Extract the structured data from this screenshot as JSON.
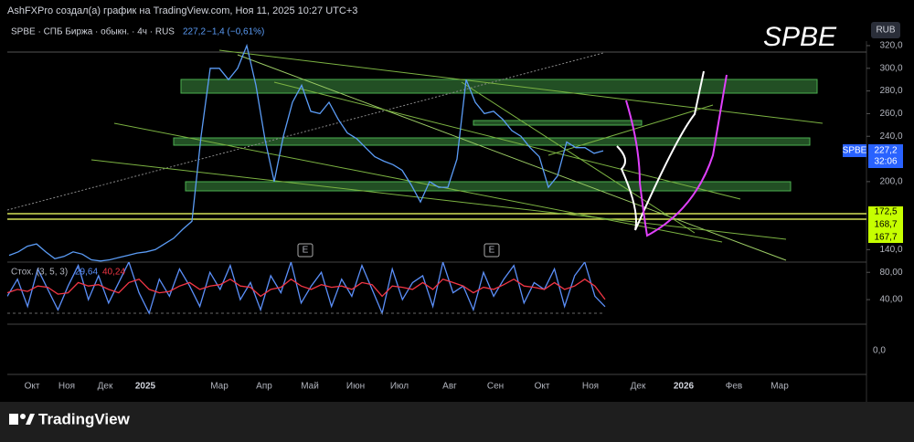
{
  "header": {
    "author_line": "AshFXPro создал(а) график на TradingView.com, Ноя 11, 2025 10:27 UTC+3",
    "symbol_line": "SPBE · СПБ Биржа · обыкн. · 4ч · RUS",
    "last": "227,2",
    "change": "−1,4 (−0,61%)",
    "big_symbol": "SPBE",
    "currency": "RUB",
    "brand": "TradingView"
  },
  "price_labels": {
    "symbol": "SPBE",
    "price": "227,2",
    "countdown": "32:06",
    "levels": [
      "172,5",
      "168,7",
      "167,7"
    ]
  },
  "events": [
    "E",
    "E"
  ],
  "time_axis": [
    "Окт",
    "Ноя",
    "Дек",
    "2025",
    "Мар",
    "Апр",
    "Май",
    "Июн",
    "Июл",
    "Авг",
    "Сен",
    "Окт",
    "Ноя",
    "Дек",
    "2026",
    "Фев",
    "Мар"
  ],
  "chart_data": [
    {
      "type": "line",
      "name": "SPBE",
      "color": "#5b9cf6",
      "ylim": [
        129,
        324
      ],
      "yticks": [
        {
          "value": 320,
          "label": "320,0"
        },
        {
          "value": 300,
          "label": "300,0"
        },
        {
          "value": 280,
          "label": "280,0"
        },
        {
          "value": 260,
          "label": "260,0"
        },
        {
          "value": 240,
          "label": "240,0"
        },
        {
          "value": 200,
          "label": "200,0"
        },
        {
          "value": 140,
          "label": "140,0"
        }
      ],
      "values": [
        135,
        138,
        143,
        145,
        138,
        132,
        134,
        138,
        136,
        131,
        130,
        131,
        133,
        135,
        137,
        138,
        140,
        145,
        150,
        158,
        165,
        240,
        300,
        300,
        290,
        300,
        320,
        285,
        237,
        200,
        240,
        270,
        285,
        262,
        260,
        270,
        255,
        243,
        238,
        230,
        222,
        218,
        215,
        210,
        197,
        182,
        200,
        195,
        195,
        220,
        290,
        270,
        260,
        262,
        255,
        245,
        240,
        230,
        222,
        195,
        205,
        235,
        230,
        230,
        225,
        227.2
      ]
    },
    {
      "type": "line",
      "title": "Стох. (3, 5, 3)",
      "ylim": [
        4,
        95
      ],
      "yticks": [
        {
          "value": 80,
          "label": "80,00"
        },
        {
          "value": 40,
          "label": "40,00"
        }
      ],
      "extra_tick": {
        "value": 0,
        "label": "0,0"
      },
      "series": [
        {
          "name": "%K",
          "color": "#5b8ff9",
          "value_label": "29,64",
          "values": [
            45,
            70,
            30,
            85,
            55,
            25,
            60,
            90,
            40,
            75,
            35,
            65,
            95,
            50,
            20,
            70,
            45,
            85,
            60,
            30,
            80,
            55,
            90,
            40,
            65,
            25,
            75,
            50,
            95,
            35,
            60,
            80,
            30,
            70,
            45,
            90,
            55,
            20,
            85,
            40,
            65,
            75,
            30,
            95,
            50,
            60,
            25,
            80,
            45,
            70,
            90,
            35,
            65,
            55,
            85,
            30,
            75,
            95,
            45,
            29.64
          ]
        },
        {
          "name": "%D",
          "color": "#f23645",
          "value_label": "40,24",
          "values": [
            50,
            55,
            52,
            60,
            58,
            48,
            50,
            65,
            60,
            62,
            55,
            50,
            65,
            70,
            55,
            50,
            52,
            60,
            65,
            55,
            60,
            62,
            70,
            60,
            58,
            45,
            55,
            58,
            70,
            60,
            55,
            62,
            58,
            60,
            55,
            65,
            62,
            45,
            60,
            58,
            55,
            65,
            55,
            70,
            65,
            60,
            50,
            58,
            55,
            62,
            70,
            60,
            58,
            55,
            65,
            55,
            60,
            70,
            60,
            40.24
          ]
        }
      ]
    }
  ]
}
